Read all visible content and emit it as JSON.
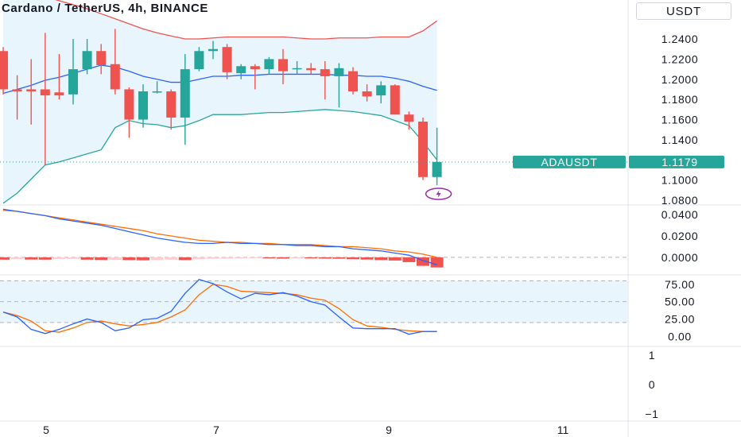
{
  "header": {
    "title": "Cardano / TetherUS, 4h, BINANCE",
    "currency": "USDT"
  },
  "colors": {
    "up": "#26a69a",
    "down": "#ef5350",
    "bb_upper": "#ef5350",
    "bb_basis": "#2962ff",
    "bb_lower": "#26a69a",
    "bb_fill": "#e3f2fd",
    "macd": "#2962ff",
    "signal": "#ff6d00",
    "hist_pos_strong": "#ef9a9a",
    "hist_pos_weak": "#ffcdd2",
    "hist_neg_strong": "#ef5350",
    "stoch_k": "#2962ff",
    "stoch_d": "#ff6d00",
    "stoch_band": "#e3f2fd",
    "alert_icon": "#9c27b0"
  },
  "chart_data": [
    {
      "type": "candlestick",
      "symbol": "ADAUSDT",
      "last_price": "1.1179",
      "ylim": [
        1.08,
        1.255
      ],
      "yticks": [
        "1.2400",
        "1.2200",
        "1.2000",
        "1.1800",
        "1.1600",
        "1.1400",
        "1.1200",
        "1.1000",
        "1.0800"
      ],
      "x_ticks": [
        "5",
        "7",
        "9",
        "11"
      ],
      "candles": [
        {
          "o": 1.228,
          "h": 1.232,
          "l": 1.185,
          "c": 1.19
        },
        {
          "o": 1.19,
          "h": 1.204,
          "l": 1.16,
          "c": 1.188
        },
        {
          "o": 1.19,
          "h": 1.22,
          "l": 1.155,
          "c": 1.188
        },
        {
          "o": 1.19,
          "h": 1.246,
          "l": 1.115,
          "c": 1.184
        },
        {
          "o": 1.187,
          "h": 1.225,
          "l": 1.18,
          "c": 1.184
        },
        {
          "o": 1.185,
          "h": 1.24,
          "l": 1.175,
          "c": 1.21
        },
        {
          "o": 1.21,
          "h": 1.24,
          "l": 1.205,
          "c": 1.228
        },
        {
          "o": 1.228,
          "h": 1.235,
          "l": 1.205,
          "c": 1.214
        },
        {
          "o": 1.215,
          "h": 1.25,
          "l": 1.185,
          "c": 1.19
        },
        {
          "o": 1.19,
          "h": 1.192,
          "l": 1.142,
          "c": 1.16
        },
        {
          "o": 1.16,
          "h": 1.195,
          "l": 1.152,
          "c": 1.188
        },
        {
          "o": 1.188,
          "h": 1.198,
          "l": 1.186,
          "c": 1.188
        },
        {
          "o": 1.188,
          "h": 1.19,
          "l": 1.15,
          "c": 1.162
        },
        {
          "o": 1.162,
          "h": 1.225,
          "l": 1.135,
          "c": 1.21
        },
        {
          "o": 1.21,
          "h": 1.232,
          "l": 1.208,
          "c": 1.228
        },
        {
          "o": 1.228,
          "h": 1.238,
          "l": 1.22,
          "c": 1.23
        },
        {
          "o": 1.232,
          "h": 1.235,
          "l": 1.2,
          "c": 1.207
        },
        {
          "o": 1.206,
          "h": 1.215,
          "l": 1.2,
          "c": 1.213
        },
        {
          "o": 1.213,
          "h": 1.215,
          "l": 1.19,
          "c": 1.21
        },
        {
          "o": 1.21,
          "h": 1.222,
          "l": 1.205,
          "c": 1.22
        },
        {
          "o": 1.22,
          "h": 1.23,
          "l": 1.195,
          "c": 1.208
        },
        {
          "o": 1.21,
          "h": 1.218,
          "l": 1.205,
          "c": 1.211
        },
        {
          "o": 1.211,
          "h": 1.216,
          "l": 1.205,
          "c": 1.209
        },
        {
          "o": 1.21,
          "h": 1.218,
          "l": 1.18,
          "c": 1.203
        },
        {
          "o": 1.203,
          "h": 1.216,
          "l": 1.172,
          "c": 1.211
        },
        {
          "o": 1.208,
          "h": 1.212,
          "l": 1.185,
          "c": 1.188
        },
        {
          "o": 1.188,
          "h": 1.195,
          "l": 1.178,
          "c": 1.183
        },
        {
          "o": 1.184,
          "h": 1.198,
          "l": 1.176,
          "c": 1.194
        },
        {
          "o": 1.194,
          "h": 1.195,
          "l": 1.165,
          "c": 1.165
        },
        {
          "o": 1.165,
          "h": 1.168,
          "l": 1.15,
          "c": 1.158
        },
        {
          "o": 1.158,
          "h": 1.162,
          "l": 1.1,
          "c": 1.103
        },
        {
          "o": 1.103,
          "h": 1.152,
          "l": 1.095,
          "c": 1.118
        }
      ],
      "bb_upper": [
        1.299,
        1.293,
        1.287,
        1.282,
        1.278,
        1.274,
        1.27,
        1.265,
        1.26,
        1.255,
        1.25,
        1.246,
        1.243,
        1.24,
        1.24,
        1.241,
        1.242,
        1.242,
        1.242,
        1.242,
        1.242,
        1.241,
        1.24,
        1.24,
        1.241,
        1.241,
        1.241,
        1.242,
        1.242,
        1.242,
        1.248,
        1.258
      ],
      "bb_basis": [
        1.186,
        1.19,
        1.194,
        1.199,
        1.202,
        1.206,
        1.21,
        1.214,
        1.212,
        1.208,
        1.203,
        1.2,
        1.197,
        1.197,
        1.2,
        1.203,
        1.203,
        1.204,
        1.204,
        1.205,
        1.205,
        1.205,
        1.205,
        1.205,
        1.204,
        1.204,
        1.203,
        1.203,
        1.201,
        1.198,
        1.193,
        1.189
      ],
      "bb_lower": [
        1.077,
        1.087,
        1.101,
        1.115,
        1.118,
        1.122,
        1.126,
        1.13,
        1.152,
        1.159,
        1.156,
        1.155,
        1.152,
        1.154,
        1.159,
        1.165,
        1.165,
        1.165,
        1.166,
        1.167,
        1.167,
        1.168,
        1.169,
        1.17,
        1.169,
        1.168,
        1.166,
        1.164,
        1.159,
        1.154,
        1.138,
        1.12
      ]
    },
    {
      "type": "macd",
      "ylim": [
        -0.012,
        0.046
      ],
      "yticks": [
        "0.0400",
        "0.0200",
        "0.0000"
      ],
      "macd": [
        0.045,
        0.043,
        0.041,
        0.039,
        0.036,
        0.034,
        0.032,
        0.03,
        0.027,
        0.024,
        0.021,
        0.018,
        0.016,
        0.014,
        0.013,
        0.013,
        0.014,
        0.013,
        0.013,
        0.012,
        0.012,
        0.011,
        0.011,
        0.01,
        0.01,
        0.008,
        0.007,
        0.006,
        0.004,
        0.002,
        -0.003,
        -0.007
      ],
      "signal": [
        0.044,
        0.043,
        0.041,
        0.039,
        0.037,
        0.035,
        0.033,
        0.031,
        0.029,
        0.027,
        0.025,
        0.022,
        0.02,
        0.018,
        0.016,
        0.015,
        0.014,
        0.014,
        0.013,
        0.013,
        0.012,
        0.012,
        0.012,
        0.011,
        0.01,
        0.01,
        0.009,
        0.008,
        0.006,
        0.005,
        0.003,
        0.0
      ],
      "histogram": [
        -0.0022,
        -0.0018,
        -0.0021,
        -0.0022,
        -0.0017,
        -0.0015,
        -0.0022,
        -0.0025,
        -0.0024,
        -0.0026,
        -0.0028,
        -0.0026,
        -0.0022,
        -0.0026,
        -0.0018,
        -0.0013,
        -0.0012,
        -0.001,
        -0.0008,
        -0.001,
        -0.0012,
        -0.001,
        -0.001,
        -0.0012,
        -0.0013,
        -0.0018,
        -0.0021,
        -0.0026,
        -0.003,
        -0.0045,
        -0.008,
        -0.0095
      ]
    },
    {
      "type": "stochastic",
      "ylim": [
        -10,
        84
      ],
      "yticks": [
        "75.00",
        "50.00",
        "25.00",
        "0.00"
      ],
      "bands": [
        20,
        50,
        80
      ],
      "k": [
        35,
        28,
        10,
        4,
        10,
        18,
        25,
        20,
        8,
        12,
        24,
        26,
        36,
        62,
        82,
        76,
        64,
        54,
        62,
        60,
        63,
        58,
        50,
        45,
        28,
        12,
        11,
        11,
        11,
        3,
        7,
        7
      ],
      "d": [
        35,
        30,
        22,
        8,
        6,
        12,
        20,
        22,
        18,
        15,
        17,
        20,
        28,
        38,
        60,
        75,
        72,
        65,
        64,
        63,
        62,
        60,
        55,
        52,
        40,
        24,
        15,
        13,
        10,
        8,
        7,
        7
      ]
    },
    {
      "type": "empty_pane",
      "yticks": [
        "1",
        "0",
        "−1"
      ]
    }
  ]
}
